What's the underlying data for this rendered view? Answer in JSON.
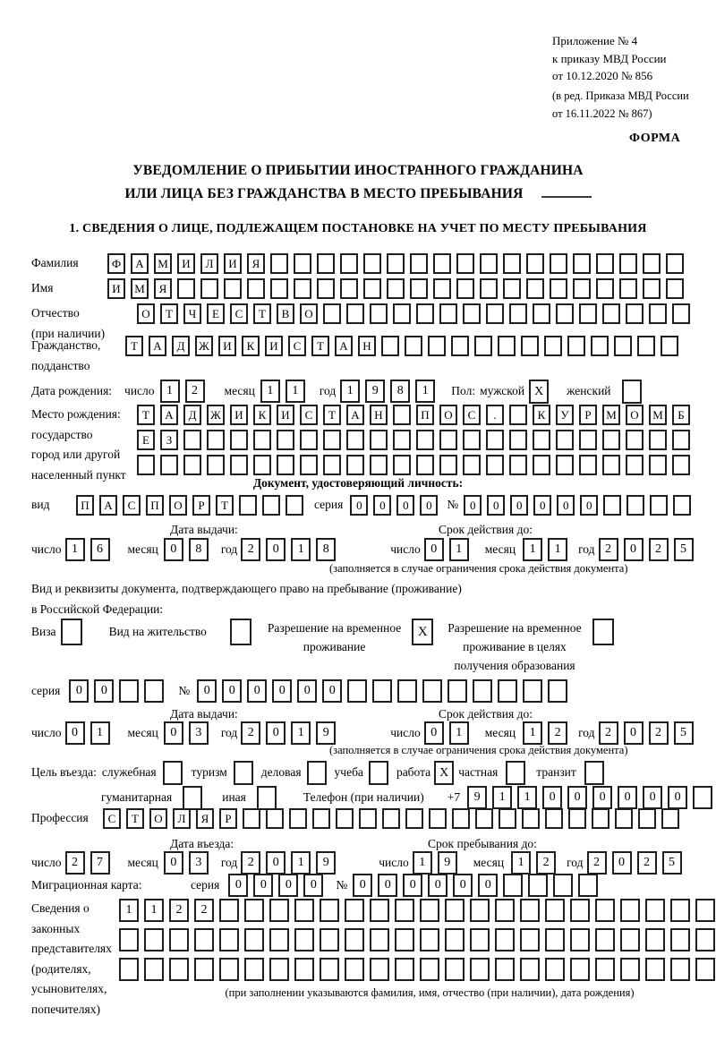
{
  "colors": {
    "background": "#ffffff",
    "text": "#000000",
    "box_border": "#1e1e1e"
  },
  "header": {
    "appendix_lines": [
      "Приложение № 4",
      "к приказу МВД России",
      "от 10.12.2020 № 856"
    ],
    "edition_lines": [
      "(в ред. Приказа МВД России",
      "от 16.11.2022 № 867)"
    ],
    "form_label": "ФОРМА"
  },
  "title": {
    "line1": "УВЕДОМЛЕНИЕ О ПРИБЫТИИ ИНОСТРАННОГО ГРАЖДАНИНА",
    "line2": "ИЛИ ЛИЦА БЕЗ ГРАЖДАНСТВА В МЕСТО ПРЕБЫВАНИЯ"
  },
  "section1_heading": "1. СВЕДЕНИЯ О ЛИЦЕ, ПОДЛЕЖАЩЕМ ПОСТАНОВКЕ НА УЧЕТ ПО МЕСТУ ПРЕБЫВАНИЯ",
  "labels": {
    "surname": "Фамилия",
    "name": "Имя",
    "patronymic": "Отчество",
    "patronymic_note": "(при наличии)",
    "citizenship1": "Гражданство,",
    "citizenship2": "подданство",
    "birth_date": "Дата рождения:",
    "day": "число",
    "month": "месяц",
    "year": "год",
    "sex": "Пол:",
    "male": "мужской",
    "female": "женский",
    "birthplace": "Место рождения:",
    "birthplace_country": "государство",
    "birthplace_city1": "город или другой",
    "birthplace_city2": "населенный пункт",
    "id_doc_heading": "Документ, удостоверяющий личность:",
    "kind": "вид",
    "series": "серия",
    "number_sign": "№",
    "issue_date": "Дата выдачи:",
    "valid_until": "Срок действия до:",
    "validity_note": "(заполняется в случае ограничения срока действия документа)",
    "right_doc_line1": "Вид и реквизиты документа, подтверждающего право на пребывание (проживание)",
    "right_doc_line2": "в Российской Федерации:",
    "visa": "Виза",
    "residence_permit": "Вид на жительство",
    "temp_permit_l1": "Разрешение на временное",
    "temp_permit_l2": "проживание",
    "temp_permit_edu_l1": "Разрешение на временное",
    "temp_permit_edu_l2": "проживание в целях",
    "temp_permit_edu_l3": "получения образования",
    "purpose": "Цель въезда:",
    "purpose_official": "служебная",
    "purpose_tourism": "туризм",
    "purpose_business": "деловая",
    "purpose_study": "учеба",
    "purpose_work": "работа",
    "purpose_private": "частная",
    "purpose_transit": "транзит",
    "purpose_humanitarian": "гуманитарная",
    "purpose_other": "иная",
    "phone": "Телефон (при наличии)",
    "phone_prefix": "+7",
    "profession": "Профессия",
    "entry_date": "Дата въезда:",
    "stay_until": "Срок пребывания до:",
    "migration_card": "Миграционная карта:",
    "reps_l1": "Сведения о",
    "reps_l2": "законных",
    "reps_l3": "представителях",
    "reps_l4": "(родителях,",
    "reps_l5": "усыновителях,",
    "reps_l6": "попечителях)",
    "reps_note": "(при заполнении указываются фамилия, имя, отчество (при наличии), дата рождения)"
  },
  "cells": {
    "surname": {
      "text": "ФАМИЛИЯ",
      "len": 25
    },
    "name": {
      "text": "ИМЯ",
      "len": 25
    },
    "patronymic": {
      "text": "ОТЧЕСТВО",
      "len": 24
    },
    "citizenship": {
      "text": "ТАДЖИКИСТАН",
      "len": 24
    },
    "birth_day": {
      "text": "12",
      "len": 2
    },
    "birth_month": {
      "text": "11",
      "len": 2
    },
    "birth_year": {
      "text": "1981",
      "len": 4
    },
    "sex_male": {
      "text": "X",
      "len": 1
    },
    "sex_female": {
      "text": "",
      "len": 1
    },
    "birthplace_row1": {
      "text": "ТАДЖИКИСТАН ПОС. КУРМОМБ",
      "len": 24
    },
    "birthplace_row2": {
      "text": "ЕЗ",
      "len": 24
    },
    "birthplace_row3": {
      "text": "",
      "len": 24
    },
    "id_kind": {
      "text": "ПАСПОРТ",
      "len": 10
    },
    "id_series": {
      "text": "0000",
      "len": 4
    },
    "id_number": {
      "text": "000000",
      "len": 10
    },
    "id_issue_day": {
      "text": "16",
      "len": 2
    },
    "id_issue_month": {
      "text": "08",
      "len": 2
    },
    "id_issue_year": {
      "text": "2018",
      "len": 4
    },
    "id_valid_day": {
      "text": "01",
      "len": 2
    },
    "id_valid_month": {
      "text": "11",
      "len": 2
    },
    "id_valid_year": {
      "text": "2025",
      "len": 4
    },
    "visa": {
      "text": "",
      "len": 1
    },
    "residence_permit": {
      "text": "",
      "len": 1
    },
    "temp_permit": {
      "text": "X",
      "len": 1
    },
    "temp_permit_edu": {
      "text": "",
      "len": 1
    },
    "permit_series": {
      "text": "00",
      "len": 4
    },
    "permit_number": {
      "text": "000000",
      "len": 15
    },
    "permit_issue_day": {
      "text": "01",
      "len": 2
    },
    "permit_issue_month": {
      "text": "03",
      "len": 2
    },
    "permit_issue_year": {
      "text": "2019",
      "len": 4
    },
    "permit_valid_day": {
      "text": "01",
      "len": 2
    },
    "permit_valid_month": {
      "text": "12",
      "len": 2
    },
    "permit_valid_year": {
      "text": "2025",
      "len": 4
    },
    "p_official": {
      "text": "",
      "len": 1
    },
    "p_tourism": {
      "text": "",
      "len": 1
    },
    "p_business": {
      "text": "",
      "len": 1
    },
    "p_study": {
      "text": "",
      "len": 1
    },
    "p_work": {
      "text": "X",
      "len": 1
    },
    "p_private": {
      "text": "",
      "len": 1
    },
    "p_transit": {
      "text": "",
      "len": 1
    },
    "p_humanitarian": {
      "text": "",
      "len": 1
    },
    "p_other": {
      "text": "",
      "len": 1
    },
    "phone": {
      "text": "911000000",
      "len": 10
    },
    "profession": {
      "text": "СТОЛЯР",
      "len": 25
    },
    "entry_day": {
      "text": "27",
      "len": 2
    },
    "entry_month": {
      "text": "03",
      "len": 2
    },
    "entry_year": {
      "text": "2019",
      "len": 4
    },
    "stay_day": {
      "text": "19",
      "len": 2
    },
    "stay_month": {
      "text": "12",
      "len": 2
    },
    "stay_year": {
      "text": "2025",
      "len": 4
    },
    "mig_series": {
      "text": "0000",
      "len": 4
    },
    "mig_number": {
      "text": "000000",
      "len": 10
    },
    "reps_row1": {
      "text": "1122",
      "len": 24
    },
    "reps_row2": {
      "text": "",
      "len": 24
    },
    "reps_row3": {
      "text": "",
      "len": 24
    }
  }
}
